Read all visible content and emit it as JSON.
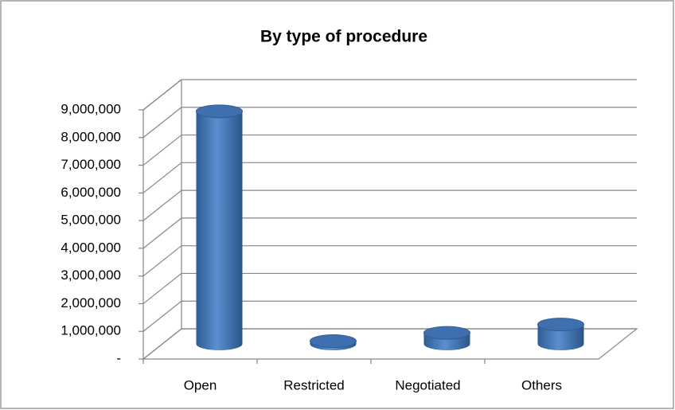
{
  "chart_data": {
    "type": "bar3d",
    "title": "By type of procedure",
    "categories": [
      "Open",
      "Restricted",
      "Negotiated",
      "Others"
    ],
    "values": [
      8400000,
      100000,
      400000,
      700000
    ],
    "color": "#4f81bd",
    "ylim": [
      0,
      9000000
    ],
    "yticks": [
      {
        "value": 0,
        "label": "-"
      },
      {
        "value": 1000000,
        "label": "1,000,000"
      },
      {
        "value": 2000000,
        "label": "2,000,000"
      },
      {
        "value": 3000000,
        "label": "3,000,000"
      },
      {
        "value": 4000000,
        "label": "4,000,000"
      },
      {
        "value": 5000000,
        "label": "5,000,000"
      },
      {
        "value": 6000000,
        "label": "6,000,000"
      },
      {
        "value": 7000000,
        "label": "7,000,000"
      },
      {
        "value": 8000000,
        "label": "8,000,000"
      },
      {
        "value": 9000000,
        "label": "9,000,000"
      }
    ],
    "grid": true
  }
}
